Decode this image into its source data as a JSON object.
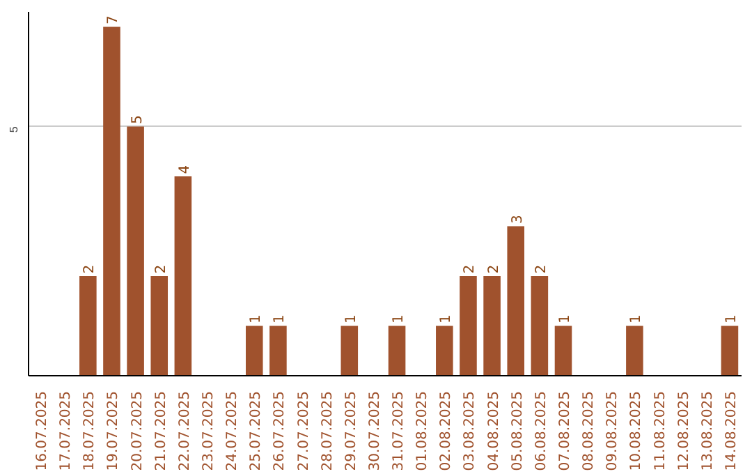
{
  "chart_data": {
    "type": "bar",
    "categories": [
      "16.07.2025",
      "17.07.2025",
      "18.07.2025",
      "19.07.2025",
      "20.07.2025",
      "21.07.2025",
      "22.07.2025",
      "23.07.2025",
      "24.07.2025",
      "25.07.2025",
      "26.07.2025",
      "27.07.2025",
      "28.07.2025",
      "29.07.2025",
      "30.07.2025",
      "31.07.2025",
      "01.08.2025",
      "02.08.2025",
      "03.08.2025",
      "04.08.2025",
      "05.08.2025",
      "06.08.2025",
      "07.08.2025",
      "08.08.2025",
      "09.08.2025",
      "10.08.2025",
      "11.08.2025",
      "12.08.2025",
      "13.08.2025",
      "14.08.2025"
    ],
    "values": [
      null,
      null,
      2,
      7,
      5,
      2,
      4,
      null,
      null,
      1,
      1,
      null,
      null,
      1,
      null,
      1,
      null,
      1,
      2,
      2,
      3,
      2,
      1,
      null,
      null,
      1,
      null,
      null,
      null,
      1
    ],
    "color": "#a0522d",
    "ylim": [
      0,
      7.3
    ],
    "yticks": [
      5
    ],
    "grid": "y",
    "data_labels": true
  }
}
